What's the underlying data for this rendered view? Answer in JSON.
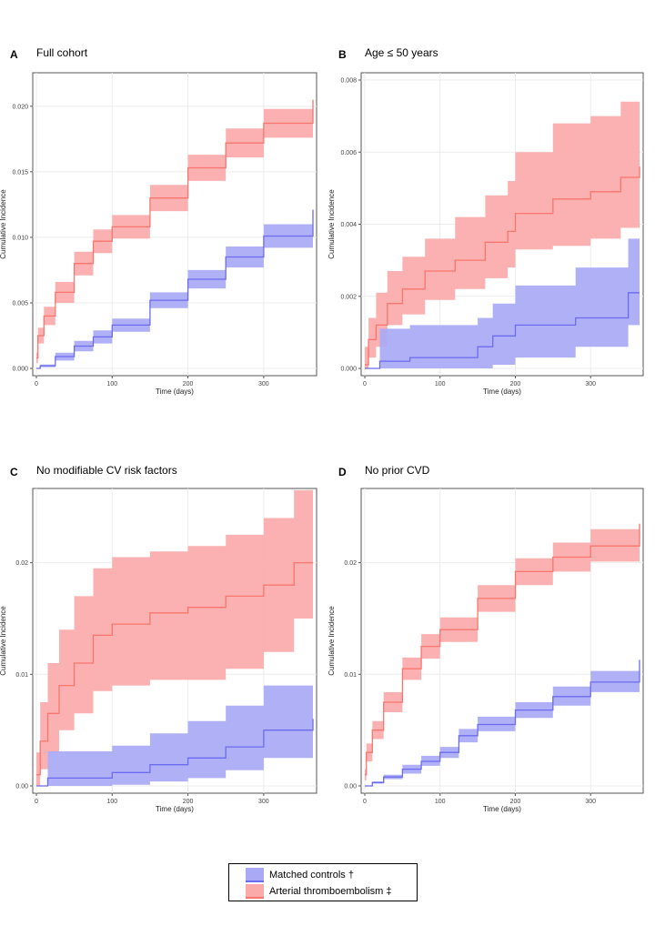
{
  "panels": [
    {
      "letter": "A",
      "title": "Full cohort",
      "chart_data": {
        "type": "line",
        "xlabel": "Time (days)",
        "ylabel": "Cumulative Incidence",
        "xlim": [
          0,
          365
        ],
        "ylim": [
          0,
          0.022
        ],
        "xticks": [
          0,
          100,
          200,
          300
        ],
        "yticks": [
          0.0,
          0.005,
          0.01,
          0.015,
          0.02
        ],
        "ytick_labels": [
          "0.000",
          "0.005",
          "0.010",
          "0.015",
          "0.020"
        ],
        "series": [
          {
            "name": "Arterial thromboembolism ‡",
            "color": "#f8766d",
            "x": [
              0,
              2,
              10,
              25,
              50,
              75,
              100,
              150,
              200,
              250,
              300,
              365
            ],
            "y": [
              0.0008,
              0.0025,
              0.004,
              0.0058,
              0.008,
              0.0097,
              0.0108,
              0.013,
              0.0153,
              0.0172,
              0.0187,
              0.0205
            ],
            "lower": [
              0.0004,
              0.0019,
              0.0033,
              0.005,
              0.0071,
              0.0088,
              0.0099,
              0.012,
              0.0143,
              0.0161,
              0.0176,
              0.0192
            ],
            "upper": [
              0.0012,
              0.0031,
              0.0047,
              0.0066,
              0.0089,
              0.0106,
              0.0117,
              0.014,
              0.0163,
              0.0183,
              0.0198,
              0.0218
            ]
          },
          {
            "name": "Matched controls †",
            "color": "#6b6bef",
            "x": [
              0,
              5,
              25,
              50,
              75,
              100,
              150,
              200,
              250,
              300,
              365
            ],
            "y": [
              0.0,
              0.0002,
              0.0009,
              0.0017,
              0.0024,
              0.0033,
              0.0052,
              0.0068,
              0.0085,
              0.0101,
              0.0121
            ],
            "lower": [
              0.0,
              0.0001,
              0.0006,
              0.0013,
              0.0019,
              0.0028,
              0.0046,
              0.0061,
              0.0077,
              0.0092,
              0.0111
            ],
            "upper": [
              0.0,
              0.0003,
              0.0012,
              0.0021,
              0.0029,
              0.0038,
              0.0058,
              0.0075,
              0.0093,
              0.011,
              0.0132
            ]
          }
        ]
      }
    },
    {
      "letter": "B",
      "title": "Age ≤ 50 years",
      "chart_data": {
        "type": "line",
        "xlabel": "Time (days)",
        "ylabel": "Cumulative Incidence",
        "xlim": [
          0,
          365
        ],
        "ylim": [
          0,
          0.008
        ],
        "xticks": [
          0,
          100,
          200,
          300
        ],
        "yticks": [
          0.0,
          0.002,
          0.004,
          0.006,
          0.008
        ],
        "ytick_labels": [
          "0.000",
          "0.002",
          "0.004",
          "0.006",
          "0.008"
        ],
        "series": [
          {
            "name": "Arterial thromboembolism ‡",
            "color": "#f8766d",
            "x": [
              0,
              5,
              15,
              30,
              50,
              80,
              120,
              160,
              190,
              200,
              250,
              300,
              340,
              365
            ],
            "y": [
              0.0001,
              0.0008,
              0.0012,
              0.0018,
              0.0022,
              0.0027,
              0.003,
              0.0035,
              0.0038,
              0.0043,
              0.0047,
              0.0049,
              0.0053,
              0.0056
            ],
            "lower": [
              0.0,
              0.0003,
              0.0006,
              0.0012,
              0.0015,
              0.0019,
              0.0022,
              0.0025,
              0.0028,
              0.0033,
              0.0034,
              0.0036,
              0.0039,
              0.004
            ],
            "upper": [
              0.0006,
              0.0014,
              0.0021,
              0.0027,
              0.0031,
              0.0036,
              0.0042,
              0.0048,
              0.0052,
              0.006,
              0.0068,
              0.007,
              0.0074,
              0.0077
            ]
          },
          {
            "name": "Matched controls †",
            "color": "#6b6bef",
            "x": [
              0,
              15,
              20,
              60,
              150,
              170,
              200,
              280,
              350,
              365
            ],
            "y": [
              0.0,
              0.0,
              0.0002,
              0.0003,
              0.0006,
              0.0009,
              0.0012,
              0.0014,
              0.0021,
              0.0021
            ],
            "lower": [
              0.0,
              0.0,
              0.0,
              0.0,
              0.0,
              0.0001,
              0.0003,
              0.0006,
              0.0012,
              0.0012
            ],
            "upper": [
              0.0,
              0.0,
              0.0011,
              0.0012,
              0.0014,
              0.0018,
              0.0023,
              0.0028,
              0.0036,
              0.0036
            ]
          }
        ]
      }
    },
    {
      "letter": "C",
      "title": "No modifiable CV risk factors",
      "chart_data": {
        "type": "line",
        "xlabel": "Time (days)",
        "ylabel": "Cumulative Incidence",
        "xlim": [
          0,
          365
        ],
        "ylim": [
          0,
          0.026
        ],
        "xticks": [
          0,
          100,
          200,
          300
        ],
        "yticks": [
          0.0,
          0.01,
          0.02
        ],
        "ytick_labels": [
          "0.00",
          "0.01",
          "0.02"
        ],
        "series": [
          {
            "name": "Arterial thromboembolism ‡",
            "color": "#f8766d",
            "x": [
              0,
              5,
              15,
              30,
              50,
              75,
              100,
              150,
              200,
              250,
              300,
              340,
              365
            ],
            "y": [
              0.001,
              0.004,
              0.0065,
              0.009,
              0.011,
              0.0135,
              0.0145,
              0.0155,
              0.016,
              0.017,
              0.018,
              0.02,
              0.02
            ],
            "lower": [
              0.0,
              0.0015,
              0.003,
              0.005,
              0.0065,
              0.0085,
              0.009,
              0.0095,
              0.0095,
              0.0105,
              0.012,
              0.015,
              0.015
            ],
            "upper": [
              0.003,
              0.0075,
              0.011,
              0.014,
              0.017,
              0.0195,
              0.0205,
              0.021,
              0.0215,
              0.0225,
              0.024,
              0.0265,
              0.0265
            ]
          },
          {
            "name": "Matched controls †",
            "color": "#6b6bef",
            "x": [
              0,
              10,
              15,
              100,
              150,
              200,
              250,
              300,
              365
            ],
            "y": [
              0.0,
              0.0,
              0.0007,
              0.0012,
              0.0019,
              0.0025,
              0.0035,
              0.005,
              0.006
            ],
            "lower": [
              0.0,
              0.0,
              0.0,
              0.0001,
              0.0004,
              0.0007,
              0.0014,
              0.0025,
              0.0035
            ],
            "upper": [
              0.0,
              0.0,
              0.0031,
              0.0036,
              0.0047,
              0.0058,
              0.0072,
              0.009,
              0.0102
            ]
          }
        ]
      }
    },
    {
      "letter": "D",
      "title": "No prior CVD",
      "chart_data": {
        "type": "line",
        "xlabel": "Time (days)",
        "ylabel": "Cumulative Incidence",
        "xlim": [
          0,
          365
        ],
        "ylim": [
          0,
          0.026
        ],
        "xticks": [
          0,
          100,
          200,
          300
        ],
        "yticks": [
          0.0,
          0.01,
          0.02
        ],
        "ytick_labels": [
          "0.00",
          "0.01",
          "0.02"
        ],
        "series": [
          {
            "name": "Arterial thromboembolism ‡",
            "color": "#f8766d",
            "x": [
              0,
              2,
              10,
              25,
              50,
              75,
              100,
              150,
              200,
              250,
              300,
              365
            ],
            "y": [
              0.001,
              0.003,
              0.005,
              0.0075,
              0.0105,
              0.0125,
              0.014,
              0.0168,
              0.0192,
              0.0205,
              0.0215,
              0.0235
            ],
            "lower": [
              0.0005,
              0.0022,
              0.0042,
              0.0066,
              0.0095,
              0.0114,
              0.0129,
              0.0156,
              0.018,
              0.0192,
              0.0201,
              0.0218
            ],
            "upper": [
              0.0015,
              0.0038,
              0.0058,
              0.0084,
              0.0115,
              0.0136,
              0.0151,
              0.018,
              0.0204,
              0.0218,
              0.023,
              0.0255
            ]
          },
          {
            "name": "Matched controls †",
            "color": "#6b6bef",
            "x": [
              0,
              10,
              25,
              50,
              75,
              100,
              125,
              150,
              200,
              250,
              300,
              365
            ],
            "y": [
              0.0,
              0.0003,
              0.0008,
              0.0015,
              0.0022,
              0.003,
              0.0045,
              0.0055,
              0.0068,
              0.008,
              0.0093,
              0.0113
            ],
            "lower": [
              0.0,
              0.0002,
              0.0006,
              0.0011,
              0.0018,
              0.0025,
              0.0039,
              0.0049,
              0.0061,
              0.0072,
              0.0084,
              0.0102
            ],
            "upper": [
              0.0,
              0.0004,
              0.001,
              0.0019,
              0.0027,
              0.0035,
              0.0051,
              0.0062,
              0.0075,
              0.0089,
              0.0103,
              0.0125
            ]
          }
        ]
      }
    }
  ],
  "legend": [
    {
      "label": "Matched controls †",
      "color": "#6b6bef"
    },
    {
      "label": "Arterial thromboembolism ‡",
      "color": "#f8766d"
    }
  ]
}
